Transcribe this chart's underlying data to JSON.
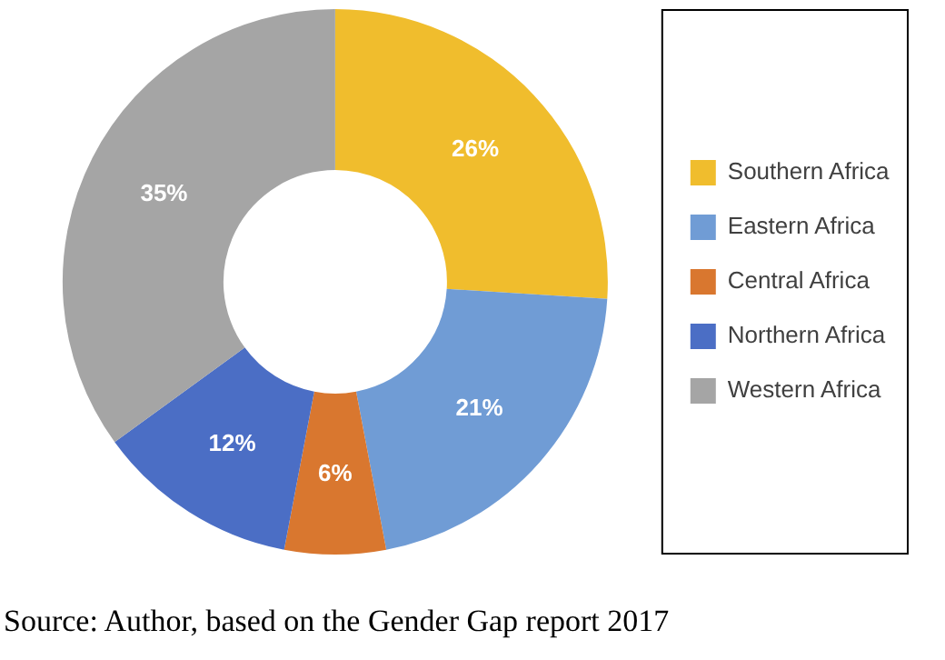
{
  "chart_data": {
    "type": "donut",
    "categories": [
      "Southern Africa",
      "Eastern Africa",
      "Central Africa",
      "Northern Africa",
      "Western Africa"
    ],
    "values": [
      26,
      21,
      6,
      12,
      35
    ],
    "colors": [
      "#f0bd2d",
      "#709cd5",
      "#d9772f",
      "#4b6ec5",
      "#a5a5a5"
    ],
    "value_labels": [
      "26%",
      "21%",
      "6%",
      "12%",
      "35%"
    ],
    "legend": "right",
    "annotations": [
      "Source: Author, based on the Gender Gap report 2017"
    ]
  }
}
